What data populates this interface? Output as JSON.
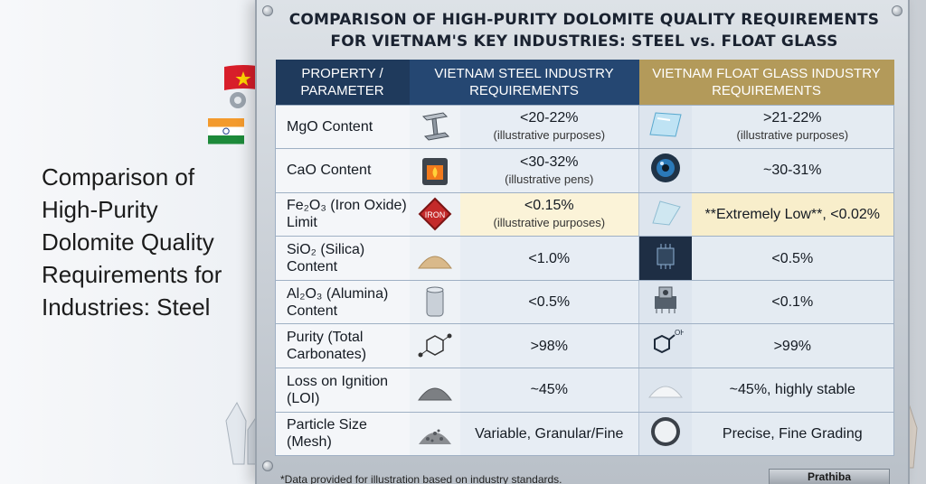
{
  "left_caption": "Comparison of High-Purity Dolomite Quality Requirements for Industries: Steel",
  "title": {
    "line1": "COMPARISON OF HIGH-PURITY DOLOMITE QUALITY REQUIREMENTS",
    "line2": "FOR VIETNAM'S KEY INDUSTRIES: STEEL vs. FLOAT GLASS"
  },
  "headers": {
    "property": "PROPERTY / PARAMETER",
    "steel": "VIETNAM STEEL INDUSTRY REQUIREMENTS",
    "glass": "VIETNAM FLOAT GLASS INDUSTRY REQUIREMENTS"
  },
  "rows": [
    {
      "property": "MgO Content",
      "steel_icon": "steel-beam-icon",
      "steel": "<20-22%",
      "steel_note": "(illustrative purposes)",
      "glass_icon": "glass-pane-icon",
      "glass": ">21-22%",
      "glass_note": "(illustrative purposes)"
    },
    {
      "property": "CaO Content",
      "steel_icon": "furnace-icon",
      "steel": "<30-32%",
      "steel_note": "(illustrative pens)",
      "glass_icon": "lens-icon",
      "glass": "~30-31%",
      "glass_note": ""
    },
    {
      "property": "Fe₂O₃ (Iron Oxide) Limit",
      "steel_icon": "iron-sign-icon",
      "iron_label": "IRON",
      "steel": "<0.15%",
      "steel_note": "(illustrative purposes)",
      "glass_icon": "glass-shard-icon",
      "glass": "**Extremely Low**, <0.02%",
      "glass_note": ""
    },
    {
      "property": "SiO₂ (Silica) Content",
      "steel_icon": "sand-pile-icon",
      "steel": "<1.0%",
      "steel_note": "",
      "glass_icon": "chip-icon",
      "glass": "<0.5%",
      "glass_note": ""
    },
    {
      "property": "Al₂O₃ (Alumina) Content",
      "steel_icon": "can-icon",
      "steel": "<0.5%",
      "steel_note": "",
      "glass_icon": "component-icon",
      "glass": "<0.1%",
      "glass_note": ""
    },
    {
      "property": "Purity (Total Carbonates)",
      "steel_icon": "molecule-icon",
      "steel": ">98%",
      "steel_note": "",
      "glass_icon": "molecule-oh-icon",
      "oh_label": "OH",
      "glass": ">99%",
      "glass_note": ""
    },
    {
      "property": "Loss on Ignition (LOI)",
      "steel_icon": "powder-pile-icon",
      "steel": "~45%",
      "steel_note": "",
      "glass_icon": "white-powder-icon",
      "glass": "~45%, highly stable",
      "glass_note": ""
    },
    {
      "property": "Particle Size (Mesh)",
      "steel_icon": "gravel-icon",
      "steel": "Variable, Granular/Fine",
      "steel_note": "",
      "glass_icon": "fine-powder-dish-icon",
      "glass": "Precise, Fine Grading",
      "glass_note": ""
    }
  ],
  "footnote": "*Data provided for illustration based on industry standards.",
  "credit": "Prathiba",
  "colors": {
    "navy": "#1f3a5c",
    "gold": "#b39a5a",
    "highlight": "#fbf3d8"
  }
}
